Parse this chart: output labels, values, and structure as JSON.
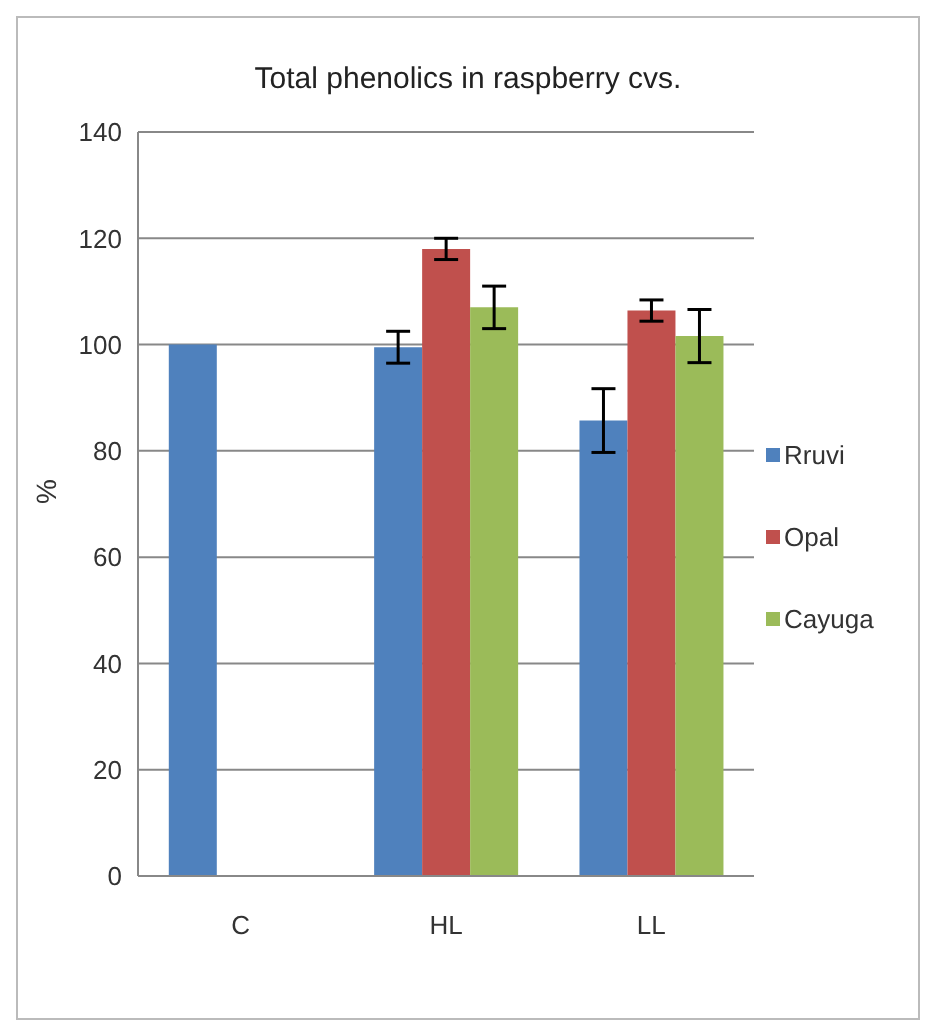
{
  "chart_data": {
    "type": "bar",
    "title": "Total phenolics in raspberry cvs.",
    "ylabel": "%",
    "categories": [
      "C",
      "HL",
      "LL"
    ],
    "series": [
      {
        "name": "Rruvi",
        "color": "#4f81bd",
        "values": [
          100,
          99.5,
          85.7
        ],
        "errors": [
          null,
          3,
          6
        ]
      },
      {
        "name": "Opal",
        "color": "#c0504d",
        "values": [
          null,
          118,
          106.4
        ],
        "errors": [
          null,
          2,
          2
        ]
      },
      {
        "name": "Cayuga",
        "color": "#9bbb59",
        "values": [
          null,
          107,
          101.6
        ],
        "errors": [
          null,
          4,
          5
        ]
      }
    ],
    "ylim": [
      0,
      140
    ],
    "yticks": [
      0,
      20,
      40,
      60,
      80,
      100,
      120,
      140
    ],
    "grid": "y",
    "legend": "right"
  }
}
